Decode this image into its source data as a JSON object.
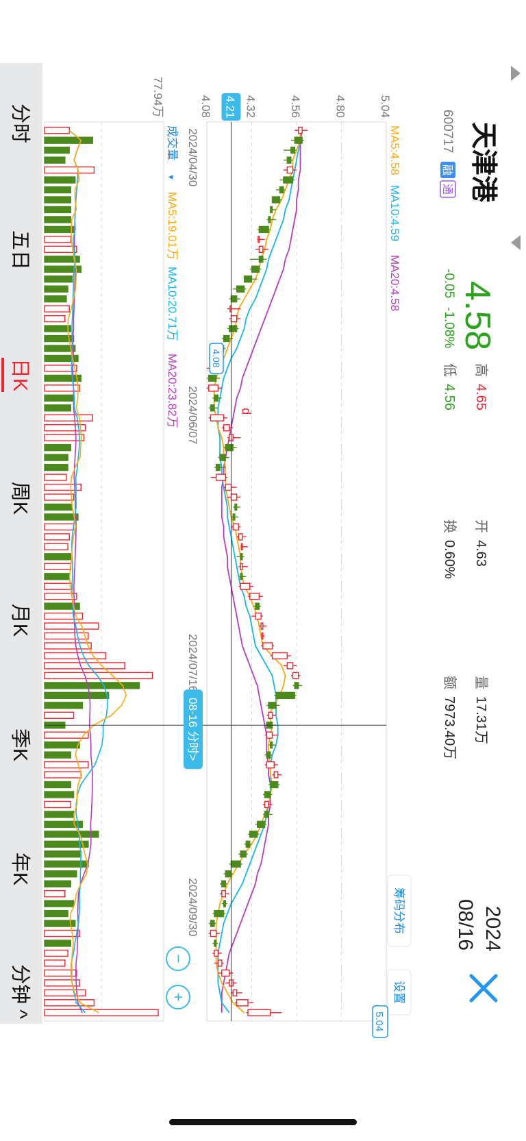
{
  "header": {
    "back_icon": "triangle-up-icon",
    "stock_name": "天津港",
    "stock_code": "600717",
    "badges": [
      "融",
      "通"
    ],
    "prev_icon": "triangle-down-icon",
    "price": "4.58",
    "change": "-0.05",
    "change_pct": "-1.08%",
    "high_label": "高",
    "high_value": "4.65",
    "low_label": "低",
    "low_value": "4.56",
    "open_label": "开",
    "open_value": "4.63",
    "turnover_label": "换",
    "turnover_value": "0.60%",
    "volume_label": "量",
    "volume_value": "17.31万",
    "amount_label": "额",
    "amount_value": "7973.40万",
    "date_year": "2024",
    "date_md": "08/16",
    "close_icon": "close-icon",
    "chip_button": "筹码分布",
    "settings_button": "设置"
  },
  "ma_legend": {
    "ma5": "MA5:4.58",
    "ma10": "MA10:4.59",
    "ma20": "MA20:4.58"
  },
  "vol_legend": {
    "label": "成交量",
    "arrow": "▼",
    "ma5": "MA5:19.01万",
    "ma10": "MA10:20.71万",
    "ma20": "MA20:23.82万"
  },
  "tabs": [
    {
      "label": "分时",
      "active": false
    },
    {
      "label": "五日",
      "active": false
    },
    {
      "label": "日K",
      "active": true
    },
    {
      "label": "周K",
      "active": false
    },
    {
      "label": "月K",
      "active": false
    },
    {
      "label": "季K",
      "active": false
    },
    {
      "label": "年K",
      "active": false
    },
    {
      "label": "分钟",
      "active": false,
      "suffix": "^"
    }
  ],
  "zoom": {
    "minus": "−",
    "plus": "+"
  },
  "colors": {
    "up": "#f2232d",
    "down": "#4d8a1d",
    "ma5": "#ffa90d",
    "ma10": "#14b6ef",
    "ma20": "#b53cc1",
    "accent": "#3cbbea",
    "price_down": "#2ca31c"
  },
  "chart_data": {
    "type": "candlestick",
    "price_axis": {
      "ticks": [
        "5.04",
        "4.80",
        "4.56",
        "4.32",
        "4.08"
      ],
      "min": 4.08,
      "max": 5.04
    },
    "volume_axis": {
      "ticks": [
        "77.94万"
      ],
      "max": 77.94,
      "unit": "万"
    },
    "date_labels": [
      "2024/04/30",
      "2024/06/07",
      "2024/07/16",
      "2024/09/30"
    ],
    "crosshair": {
      "price": "4.21",
      "date": "08-16 分时>"
    },
    "markers": {
      "high": "5.04",
      "low": "4.08",
      "low_glyph": "d"
    },
    "candles": [
      [
        4.57,
        4.59,
        4.62,
        4.55,
        17
      ],
      [
        4.59,
        4.55,
        4.6,
        4.53,
        33
      ],
      [
        4.55,
        4.53,
        4.56,
        4.49,
        17
      ],
      [
        4.53,
        4.51,
        4.54,
        4.49,
        14
      ],
      [
        4.51,
        4.54,
        4.56,
        4.49,
        34
      ],
      [
        4.54,
        4.49,
        4.55,
        4.47,
        21
      ],
      [
        4.49,
        4.47,
        4.5,
        4.45,
        18
      ],
      [
        4.47,
        4.43,
        4.48,
        4.43,
        18
      ],
      [
        4.43,
        4.42,
        4.45,
        4.42,
        18
      ],
      [
        4.42,
        4.41,
        4.45,
        4.4,
        18
      ],
      [
        4.41,
        4.36,
        4.42,
        4.35,
        20
      ],
      [
        4.36,
        4.36,
        4.39,
        4.35,
        18
      ],
      [
        4.36,
        4.38,
        4.41,
        4.34,
        22
      ],
      [
        4.38,
        4.36,
        4.4,
        4.31,
        24
      ],
      [
        4.36,
        4.32,
        4.37,
        4.31,
        25
      ],
      [
        4.32,
        4.28,
        4.35,
        4.28,
        19
      ],
      [
        4.28,
        4.24,
        4.29,
        4.22,
        16
      ],
      [
        4.24,
        4.21,
        4.26,
        4.2,
        15
      ],
      [
        4.21,
        4.21,
        4.26,
        4.19,
        17
      ],
      [
        4.21,
        4.24,
        4.26,
        4.2,
        14
      ],
      [
        4.24,
        4.2,
        4.25,
        4.19,
        18
      ],
      [
        4.2,
        4.17,
        4.22,
        4.16,
        20
      ],
      [
        4.17,
        4.15,
        4.18,
        4.13,
        21
      ],
      [
        4.15,
        4.1,
        4.16,
        4.09,
        23
      ],
      [
        4.1,
        4.13,
        4.14,
        4.08,
        22
      ],
      [
        4.13,
        4.09,
        4.15,
        4.08,
        25
      ],
      [
        4.09,
        4.14,
        4.16,
        4.08,
        24
      ],
      [
        4.14,
        4.12,
        4.16,
        4.11,
        20
      ],
      [
        4.12,
        4.1,
        4.14,
        4.09,
        18
      ],
      [
        4.1,
        4.17,
        4.19,
        4.09,
        33
      ],
      [
        4.17,
        4.2,
        4.22,
        4.16,
        28
      ],
      [
        4.2,
        4.22,
        4.26,
        4.19,
        27
      ],
      [
        4.22,
        4.18,
        4.24,
        4.17,
        18
      ],
      [
        4.18,
        4.15,
        4.2,
        4.14,
        16
      ],
      [
        4.15,
        4.13,
        4.18,
        4.12,
        16
      ],
      [
        4.13,
        4.18,
        4.19,
        4.1,
        15
      ],
      [
        4.18,
        4.21,
        4.24,
        4.17,
        25
      ],
      [
        4.21,
        4.24,
        4.26,
        4.19,
        20
      ],
      [
        4.24,
        4.23,
        4.26,
        4.22,
        19
      ],
      [
        4.23,
        4.22,
        4.25,
        4.21,
        23
      ],
      [
        4.22,
        4.25,
        4.26,
        4.21,
        20
      ],
      [
        4.25,
        4.27,
        4.29,
        4.24,
        17
      ],
      [
        4.27,
        4.27,
        4.3,
        4.26,
        16
      ],
      [
        4.27,
        4.26,
        4.28,
        4.24,
        18
      ],
      [
        4.26,
        4.27,
        4.3,
        4.25,
        18
      ],
      [
        4.27,
        4.26,
        4.29,
        4.25,
        17
      ],
      [
        4.26,
        4.31,
        4.33,
        4.25,
        19
      ],
      [
        4.31,
        4.36,
        4.38,
        4.3,
        22
      ],
      [
        4.36,
        4.34,
        4.37,
        4.33,
        24
      ],
      [
        4.34,
        4.37,
        4.38,
        4.32,
        26
      ],
      [
        4.37,
        4.38,
        4.4,
        4.36,
        37
      ],
      [
        4.38,
        4.38,
        4.39,
        4.37,
        30
      ],
      [
        4.38,
        4.43,
        4.44,
        4.37,
        32
      ],
      [
        4.43,
        4.51,
        4.53,
        4.42,
        42
      ],
      [
        4.51,
        4.54,
        4.56,
        4.49,
        55
      ],
      [
        4.54,
        4.57,
        4.58,
        4.53,
        74
      ],
      [
        4.57,
        4.55,
        4.59,
        4.54,
        65
      ],
      [
        4.55,
        4.45,
        4.56,
        4.44,
        44
      ],
      [
        4.45,
        4.41,
        4.47,
        4.4,
        26
      ],
      [
        4.41,
        4.43,
        4.45,
        4.4,
        20
      ],
      [
        4.43,
        4.4,
        4.45,
        4.39,
        14
      ],
      [
        4.4,
        4.43,
        4.46,
        4.39,
        30
      ],
      [
        4.43,
        4.42,
        4.45,
        4.41,
        24
      ],
      [
        4.42,
        4.4,
        4.43,
        4.39,
        18
      ],
      [
        4.4,
        4.44,
        4.46,
        4.39,
        30
      ],
      [
        4.44,
        4.46,
        4.48,
        4.43,
        25
      ],
      [
        4.46,
        4.42,
        4.47,
        4.41,
        18
      ],
      [
        4.42,
        4.39,
        4.43,
        4.38,
        20
      ],
      [
        4.39,
        4.41,
        4.43,
        4.38,
        18
      ],
      [
        4.41,
        4.39,
        4.43,
        4.38,
        20
      ],
      [
        4.39,
        4.35,
        4.4,
        4.34,
        26
      ],
      [
        4.35,
        4.31,
        4.36,
        4.3,
        37
      ],
      [
        4.31,
        4.29,
        4.32,
        4.28,
        30
      ],
      [
        4.29,
        4.26,
        4.3,
        4.25,
        25
      ],
      [
        4.26,
        4.21,
        4.27,
        4.2,
        30
      ],
      [
        4.21,
        4.18,
        4.22,
        4.17,
        22
      ],
      [
        4.18,
        4.16,
        4.19,
        4.15,
        18
      ],
      [
        4.16,
        4.18,
        4.2,
        4.15,
        14
      ],
      [
        4.18,
        4.17,
        4.19,
        4.16,
        20
      ],
      [
        4.17,
        4.12,
        4.18,
        4.11,
        16
      ],
      [
        4.12,
        4.1,
        4.13,
        4.09,
        21
      ],
      [
        4.1,
        4.13,
        4.15,
        4.09,
        24
      ],
      [
        4.13,
        4.12,
        4.14,
        4.11,
        18
      ],
      [
        4.12,
        4.14,
        4.16,
        4.11,
        16
      ],
      [
        4.14,
        4.16,
        4.17,
        4.12,
        14
      ],
      [
        4.16,
        4.2,
        4.22,
        4.14,
        22
      ],
      [
        4.2,
        4.22,
        4.24,
        4.18,
        24
      ],
      [
        4.22,
        4.24,
        4.27,
        4.21,
        28
      ],
      [
        4.24,
        4.3,
        4.33,
        4.23,
        34
      ],
      [
        4.3,
        4.42,
        4.48,
        4.29,
        77.94
      ]
    ],
    "ma5_line": [
      4.58,
      4.58,
      4.56,
      4.54,
      4.54,
      4.52,
      4.5,
      4.48,
      4.45,
      4.43,
      4.42,
      4.4,
      4.39,
      4.37,
      4.36,
      4.34,
      4.31,
      4.28,
      4.25,
      4.24,
      4.23,
      4.21,
      4.19,
      4.17,
      4.15,
      4.13,
      4.12,
      4.12,
      4.12,
      4.13,
      4.14,
      4.16,
      4.17,
      4.17,
      4.18,
      4.18,
      4.18,
      4.19,
      4.2,
      4.21,
      4.23,
      4.24,
      4.25,
      4.26,
      4.26,
      4.27,
      4.28,
      4.31,
      4.33,
      4.35,
      4.36,
      4.37,
      4.38,
      4.43,
      4.48,
      4.5,
      4.49,
      4.47,
      4.44,
      4.41,
      4.43,
      4.42,
      4.41,
      4.41,
      4.42,
      4.42,
      4.43,
      4.42,
      4.41,
      4.39,
      4.37,
      4.35,
      4.32,
      4.28,
      4.25,
      4.22,
      4.19,
      4.17,
      4.15,
      4.14,
      4.13,
      4.13,
      4.13,
      4.13,
      4.13,
      4.14,
      4.16,
      4.19,
      4.22,
      4.28
    ],
    "ma10_line": [
      4.58,
      4.58,
      4.57,
      4.56,
      4.55,
      4.54,
      4.53,
      4.52,
      4.5,
      4.49,
      4.47,
      4.45,
      4.43,
      4.41,
      4.4,
      4.38,
      4.36,
      4.34,
      4.31,
      4.29,
      4.28,
      4.26,
      4.24,
      4.21,
      4.19,
      4.17,
      4.16,
      4.15,
      4.14,
      4.14,
      4.14,
      4.15,
      4.15,
      4.15,
      4.16,
      4.16,
      4.17,
      4.18,
      4.19,
      4.19,
      4.2,
      4.21,
      4.22,
      4.23,
      4.24,
      4.25,
      4.26,
      4.28,
      4.29,
      4.31,
      4.32,
      4.33,
      4.34,
      4.37,
      4.4,
      4.43,
      4.44,
      4.45,
      4.45,
      4.45,
      4.46,
      4.46,
      4.45,
      4.43,
      4.42,
      4.42,
      4.42,
      4.42,
      4.41,
      4.4,
      4.39,
      4.37,
      4.35,
      4.33,
      4.31,
      4.29,
      4.27,
      4.24,
      4.21,
      4.19,
      4.17,
      4.16,
      4.15,
      4.14,
      4.14,
      4.14,
      4.14,
      4.15,
      4.16,
      4.2
    ],
    "ma20_line": [
      4.59,
      4.58,
      4.58,
      4.58,
      4.58,
      4.57,
      4.57,
      4.56,
      4.56,
      4.55,
      4.54,
      4.53,
      4.52,
      4.5,
      4.49,
      4.47,
      4.45,
      4.43,
      4.41,
      4.39,
      4.37,
      4.35,
      4.33,
      4.31,
      4.29,
      4.27,
      4.26,
      4.24,
      4.23,
      4.22,
      4.21,
      4.2,
      4.19,
      4.18,
      4.17,
      4.17,
      4.16,
      4.16,
      4.16,
      4.16,
      4.17,
      4.17,
      4.18,
      4.19,
      4.19,
      4.2,
      4.21,
      4.22,
      4.23,
      4.24,
      4.25,
      4.26,
      4.27,
      4.29,
      4.31,
      4.33,
      4.35,
      4.36,
      4.37,
      4.38,
      4.39,
      4.4,
      4.4,
      4.4,
      4.41,
      4.41,
      4.42,
      4.42,
      4.42,
      4.41,
      4.41,
      4.4,
      4.39,
      4.38,
      4.37,
      4.35,
      4.34,
      4.32,
      4.3,
      4.28,
      4.26,
      4.24,
      4.22,
      4.2,
      4.19,
      4.18,
      4.17,
      4.16,
      4.16,
      4.16
    ]
  }
}
